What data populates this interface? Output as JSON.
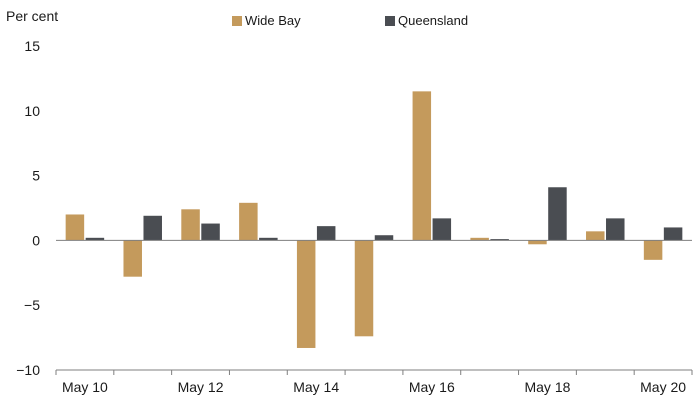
{
  "chart_data": {
    "type": "bar",
    "ylabel": "Per cent",
    "ylim": [
      -10,
      15
    ],
    "yticks": [
      -10,
      -5,
      0,
      5,
      10,
      15
    ],
    "categories": [
      "May 10",
      "May 11",
      "May 12",
      "May 13",
      "May 14",
      "May 15",
      "May 16",
      "May 17",
      "May 18",
      "May 19",
      "May 20"
    ],
    "xtick_labels": [
      "May 10",
      "May 12",
      "May 14",
      "May 16",
      "May 18",
      "May 20"
    ],
    "series": [
      {
        "name": "Wide Bay",
        "color": "#c49a5c",
        "values": [
          2.0,
          -2.8,
          2.4,
          2.9,
          -8.3,
          -7.4,
          11.5,
          0.2,
          -0.3,
          0.7,
          -1.5
        ]
      },
      {
        "name": "Queensland",
        "color": "#4a4d52",
        "values": [
          0.2,
          1.9,
          1.3,
          0.2,
          1.1,
          0.4,
          1.7,
          0.1,
          4.1,
          1.7,
          1.0
        ]
      }
    ],
    "legend_position": "top",
    "grid": false
  }
}
